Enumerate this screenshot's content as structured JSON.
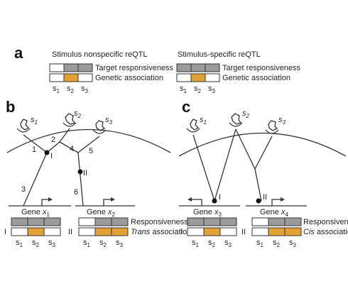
{
  "panel_a": {
    "label": "a",
    "left_title": "Stimulus nonspecific reQTL",
    "right_title": "Stimulus-specific reQTL",
    "row1_label": "Target responsiveness",
    "row2_label": "Genetic association",
    "s_labels": [
      "s",
      "s",
      "s"
    ],
    "s_subs": [
      "1",
      "2",
      "3"
    ]
  },
  "panel_b": {
    "label": "b",
    "receptor_labels": [
      "s",
      "s",
      "s"
    ],
    "receptor_subs": [
      "1",
      "2",
      "3"
    ],
    "edge_numbers": [
      "1",
      "2",
      "3",
      "4",
      "5",
      "6"
    ],
    "variant_labels": [
      "I",
      "II"
    ],
    "gene1": {
      "text": "Gene ",
      "var": "x",
      "sub": "1"
    },
    "gene2": {
      "text": "Gene ",
      "var": "x",
      "sub": "2"
    },
    "row_label_left": "I",
    "row_label_right": "II",
    "responsiveness_label": "Responsiveness",
    "association_label_italic": "Trans",
    "association_label_rest": " association",
    "s_labels": [
      "s",
      "s",
      "s"
    ],
    "s_subs": [
      "1",
      "2",
      "3"
    ]
  },
  "panel_c": {
    "label": "c",
    "receptor_labels": [
      "s",
      "s",
      "s"
    ],
    "receptor_subs": [
      "1",
      "2",
      "3"
    ],
    "variant_labels": [
      "I",
      "II"
    ],
    "gene3": {
      "text": "Gene ",
      "var": "x",
      "sub": "3"
    },
    "gene4": {
      "text": "Gene ",
      "var": "x",
      "sub": "4"
    },
    "row_label_left": "I",
    "row_label_right": "II",
    "responsiveness_label": "Responsiveness",
    "association_label_italic": "Cis",
    "association_label_rest": " association",
    "s_labels": [
      "s",
      "s",
      "s"
    ],
    "s_subs": [
      "1",
      "2",
      "3"
    ]
  },
  "colors": {
    "gray": "#9b9b9b",
    "orange": "#e3a136",
    "white": "#ffffff",
    "line": "#333333"
  }
}
